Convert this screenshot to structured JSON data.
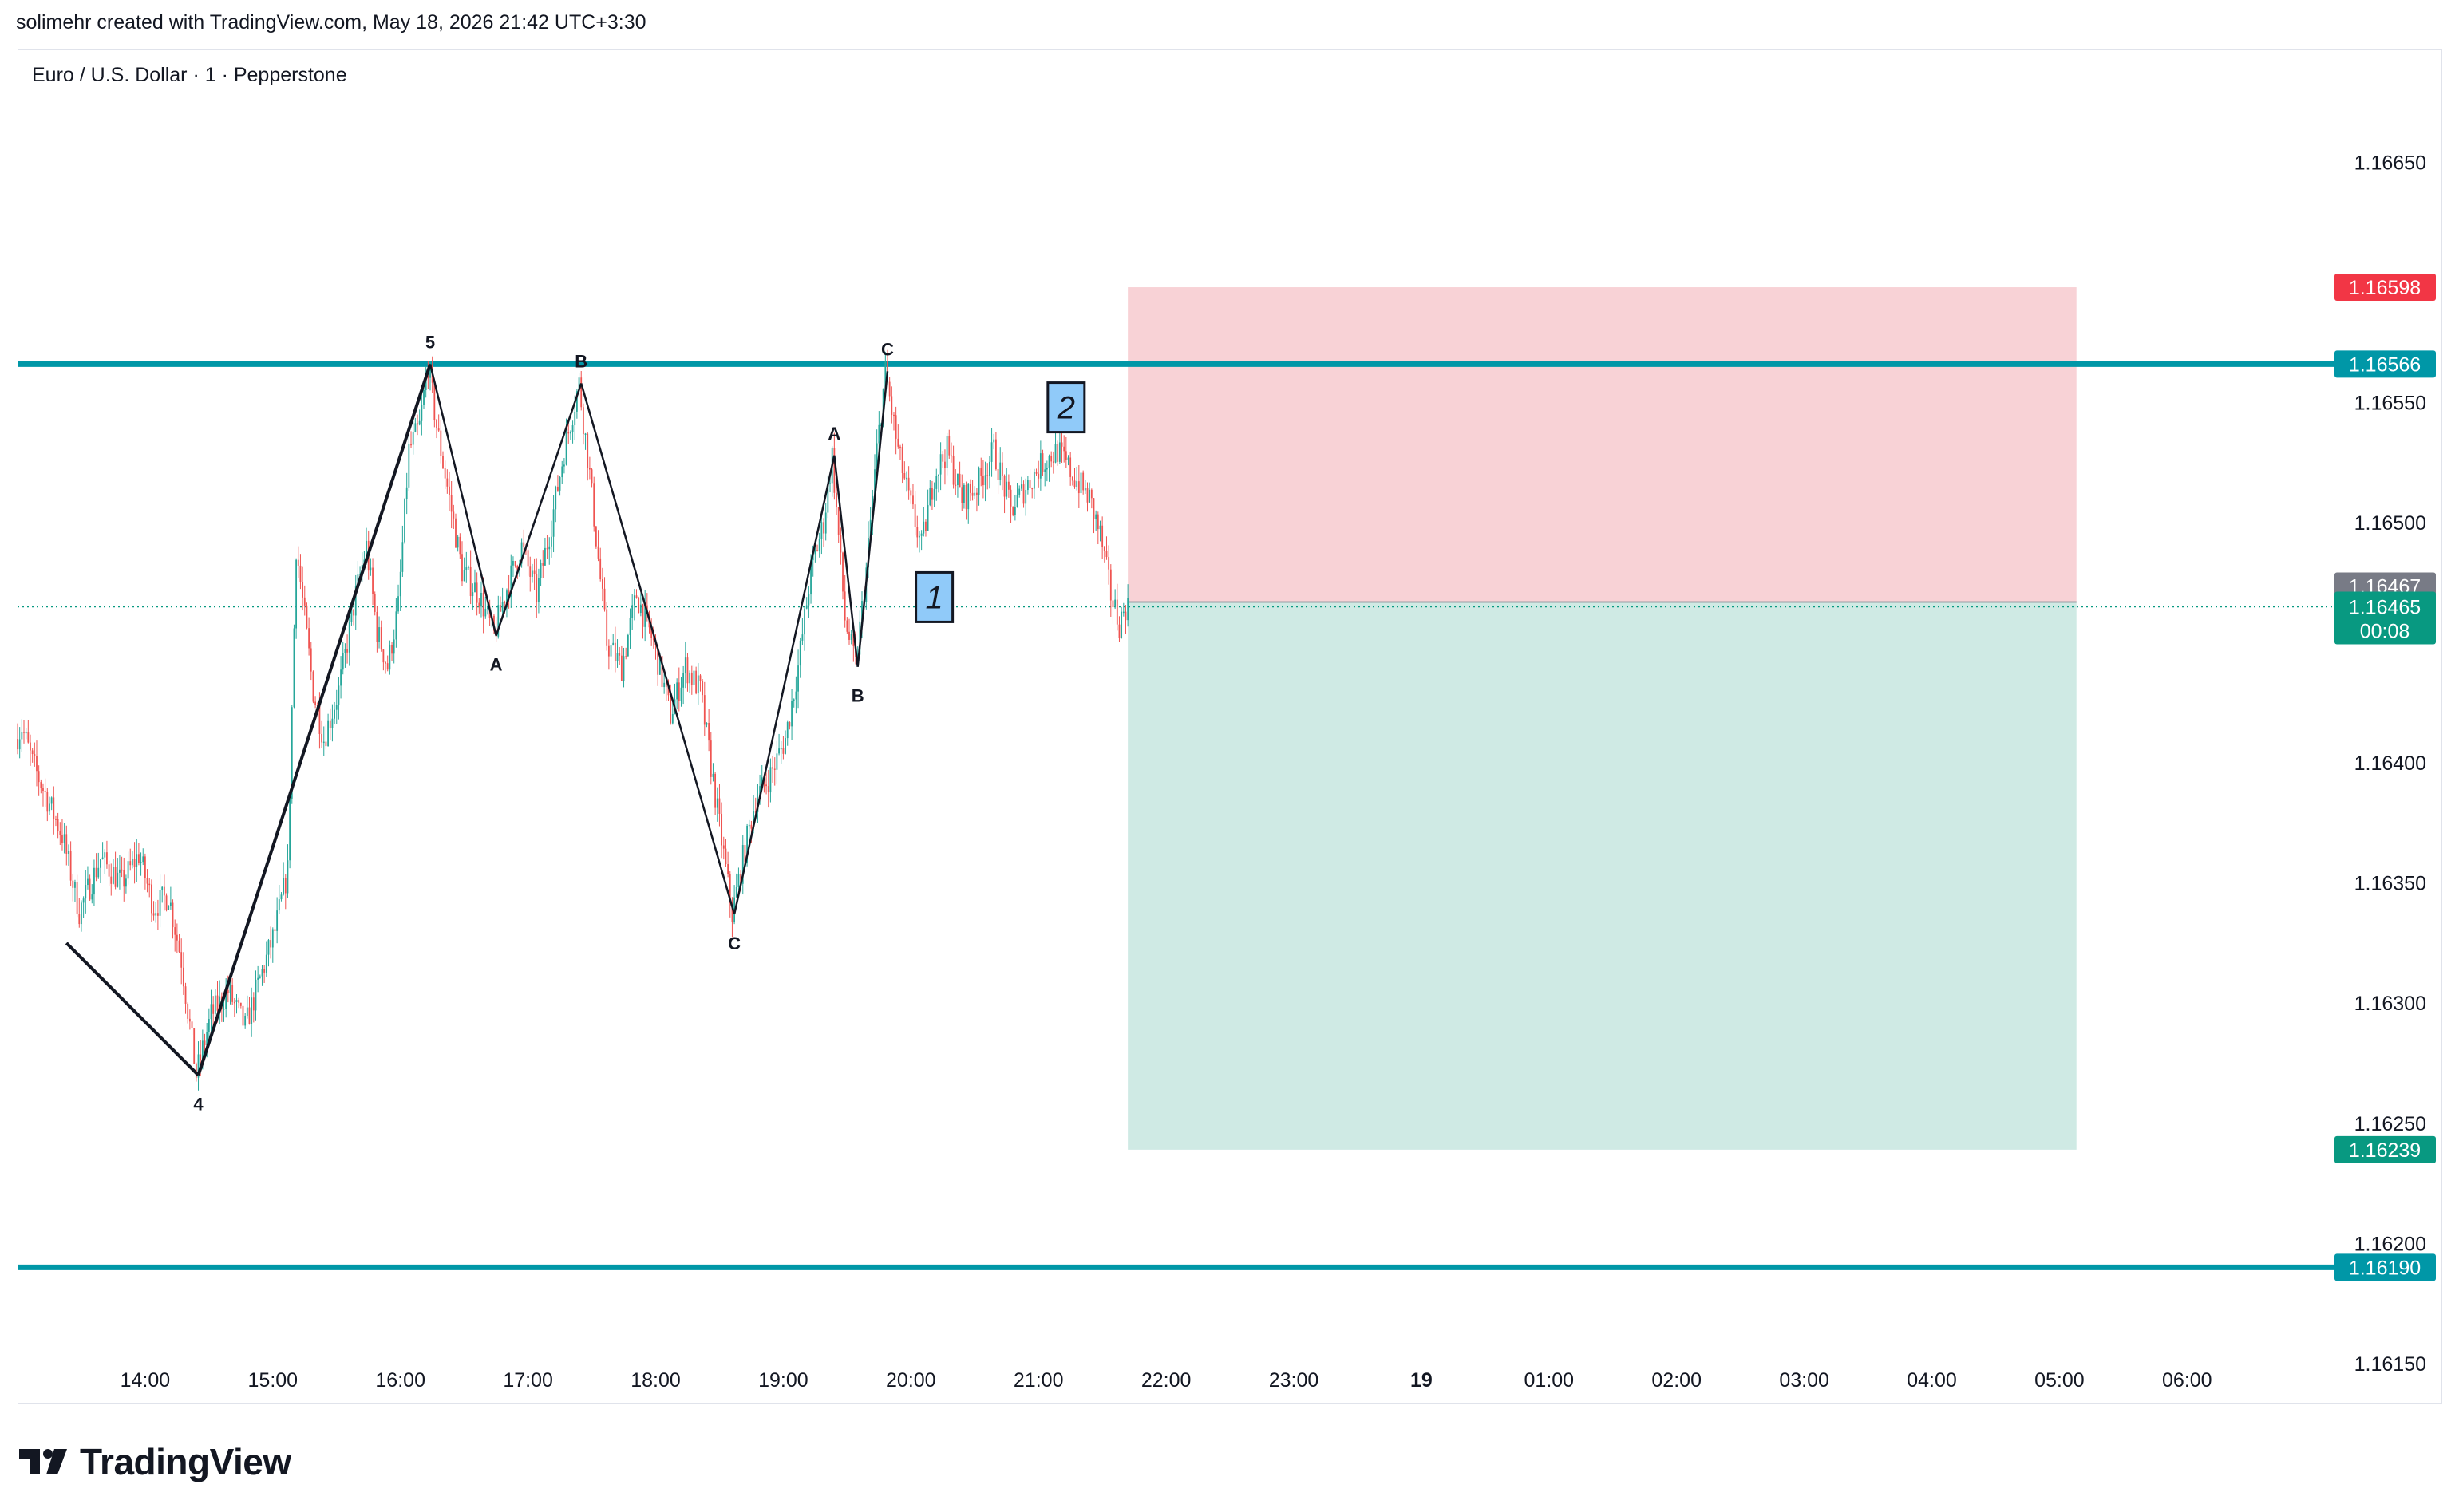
{
  "header": {
    "attribution": "solimehr created with TradingView.com, May 18, 2026 21:42 UTC+3:30",
    "symbol_title": "Euro / U.S. Dollar · 1 · Pepperstone"
  },
  "footer": {
    "logo_text": "TradingView"
  },
  "colors": {
    "up": "#26a69a",
    "down": "#ef5350",
    "level_line": "#0097a7",
    "stop_zone": "#f8d2d6",
    "target_zone": "#cfeae4",
    "current_price": "#089981",
    "stop_label": "#f23645",
    "wave_box": "#90caf9"
  },
  "chart_data": {
    "type": "candlestick",
    "symbol": "Euro / U.S. Dollar",
    "interval": "1",
    "broker": "Pepperstone",
    "x_ticks": [
      "14:00",
      "15:00",
      "16:00",
      "17:00",
      "18:00",
      "19:00",
      "20:00",
      "21:00",
      "22:00",
      "23:00",
      "19",
      "01:00",
      "02:00",
      "03:00",
      "04:00",
      "05:00",
      "06:00"
    ],
    "y_ticks": [
      "1.16650",
      "1.16550",
      "1.16500",
      "1.16400",
      "1.16350",
      "1.16300",
      "1.16250",
      "1.16200",
      "1.16150"
    ],
    "ylim": [
      1.16133,
      1.16697
    ],
    "horizontal_lines": [
      {
        "price": 1.16566,
        "label": "1.16566"
      },
      {
        "price": 1.1619,
        "label": "1.16190"
      }
    ],
    "position": {
      "entry": 1.16467,
      "stop": 1.16598,
      "target": 1.16239,
      "start_time": "21:42",
      "end_time": "05:08",
      "labels": {
        "stop": "1.16598",
        "entry": "1.16467",
        "target": "1.16239"
      }
    },
    "current_price": {
      "price": 1.16465,
      "label": "1.16465",
      "countdown": "00:08"
    },
    "waves": [
      {
        "time": "13:23",
        "price": 1.16325,
        "label": ""
      },
      {
        "time": "14:25",
        "price": 1.1627,
        "label": "4"
      },
      {
        "time": "16:14",
        "price": 1.16566,
        "label": "5"
      },
      {
        "time": "16:45",
        "price": 1.16453,
        "label": "A"
      },
      {
        "time": "17:25",
        "price": 1.16558,
        "label": "B"
      },
      {
        "time": "18:37",
        "price": 1.16337,
        "label": "C"
      },
      {
        "time": "19:24",
        "price": 1.16528,
        "label": "A"
      },
      {
        "time": "19:35",
        "price": 1.1644,
        "label": "B"
      },
      {
        "time": "19:49",
        "price": 1.16563,
        "label": "C"
      }
    ],
    "wave_boxes": [
      {
        "time": "20:11",
        "price": 1.16469,
        "label": "1"
      },
      {
        "time": "21:13",
        "price": 1.16548,
        "label": "2"
      }
    ],
    "price_path": [
      [
        "13:00",
        1.1641
      ],
      [
        "13:03",
        1.16415
      ],
      [
        "13:08",
        1.164
      ],
      [
        "13:15",
        1.16385
      ],
      [
        "13:22",
        1.1637
      ],
      [
        "13:30",
        1.16338
      ],
      [
        "13:40",
        1.1636
      ],
      [
        "13:50",
        1.1635
      ],
      [
        "13:58",
        1.16362
      ],
      [
        "14:05",
        1.1634
      ],
      [
        "14:12",
        1.16345
      ],
      [
        "14:18",
        1.16318
      ],
      [
        "14:25",
        1.1627
      ],
      [
        "14:32",
        1.16295
      ],
      [
        "14:40",
        1.16305
      ],
      [
        "14:48",
        1.1629
      ],
      [
        "14:55",
        1.1631
      ],
      [
        "15:02",
        1.1633
      ],
      [
        "15:08",
        1.16355
      ],
      [
        "15:12",
        1.1649
      ],
      [
        "15:16",
        1.1646
      ],
      [
        "15:20",
        1.1643
      ],
      [
        "15:25",
        1.1641
      ],
      [
        "15:32",
        1.1643
      ],
      [
        "15:40",
        1.1647
      ],
      [
        "15:45",
        1.1649
      ],
      [
        "15:50",
        1.16455
      ],
      [
        "15:55",
        1.1644
      ],
      [
        "16:00",
        1.16465
      ],
      [
        "16:05",
        1.1653
      ],
      [
        "16:10",
        1.1654
      ],
      [
        "16:14",
        1.16566
      ],
      [
        "16:18",
        1.1654
      ],
      [
        "16:24",
        1.1651
      ],
      [
        "16:30",
        1.1648
      ],
      [
        "16:38",
        1.1647
      ],
      [
        "16:45",
        1.16453
      ],
      [
        "16:50",
        1.1647
      ],
      [
        "16:58",
        1.1649
      ],
      [
        "17:05",
        1.1647
      ],
      [
        "17:12",
        1.165
      ],
      [
        "17:18",
        1.1653
      ],
      [
        "17:25",
        1.16558
      ],
      [
        "17:30",
        1.1652
      ],
      [
        "17:38",
        1.1645
      ],
      [
        "17:45",
        1.1644
      ],
      [
        "17:52",
        1.1647
      ],
      [
        "18:00",
        1.1645
      ],
      [
        "18:08",
        1.1642
      ],
      [
        "18:15",
        1.1644
      ],
      [
        "18:22",
        1.1643
      ],
      [
        "18:30",
        1.1638
      ],
      [
        "18:37",
        1.16337
      ],
      [
        "18:42",
        1.1636
      ],
      [
        "18:48",
        1.16385
      ],
      [
        "18:55",
        1.16395
      ],
      [
        "19:02",
        1.1641
      ],
      [
        "19:08",
        1.1644
      ],
      [
        "19:14",
        1.1648
      ],
      [
        "19:20",
        1.165
      ],
      [
        "19:24",
        1.16528
      ],
      [
        "19:30",
        1.1646
      ],
      [
        "19:35",
        1.1644
      ],
      [
        "19:40",
        1.1648
      ],
      [
        "19:45",
        1.1653
      ],
      [
        "19:49",
        1.16563
      ],
      [
        "19:55",
        1.1653
      ],
      [
        "20:00",
        1.1651
      ],
      [
        "20:06",
        1.1649
      ],
      [
        "20:12",
        1.1652
      ],
      [
        "20:18",
        1.1653
      ],
      [
        "20:25",
        1.1651
      ],
      [
        "20:32",
        1.16515
      ],
      [
        "20:40",
        1.1653
      ],
      [
        "20:48",
        1.16505
      ],
      [
        "20:55",
        1.16515
      ],
      [
        "21:03",
        1.16525
      ],
      [
        "21:10",
        1.1653
      ],
      [
        "21:17",
        1.1652
      ],
      [
        "21:25",
        1.1651
      ],
      [
        "21:30",
        1.16495
      ],
      [
        "21:35",
        1.1647
      ],
      [
        "21:39",
        1.16458
      ],
      [
        "21:42",
        1.16465
      ]
    ]
  }
}
